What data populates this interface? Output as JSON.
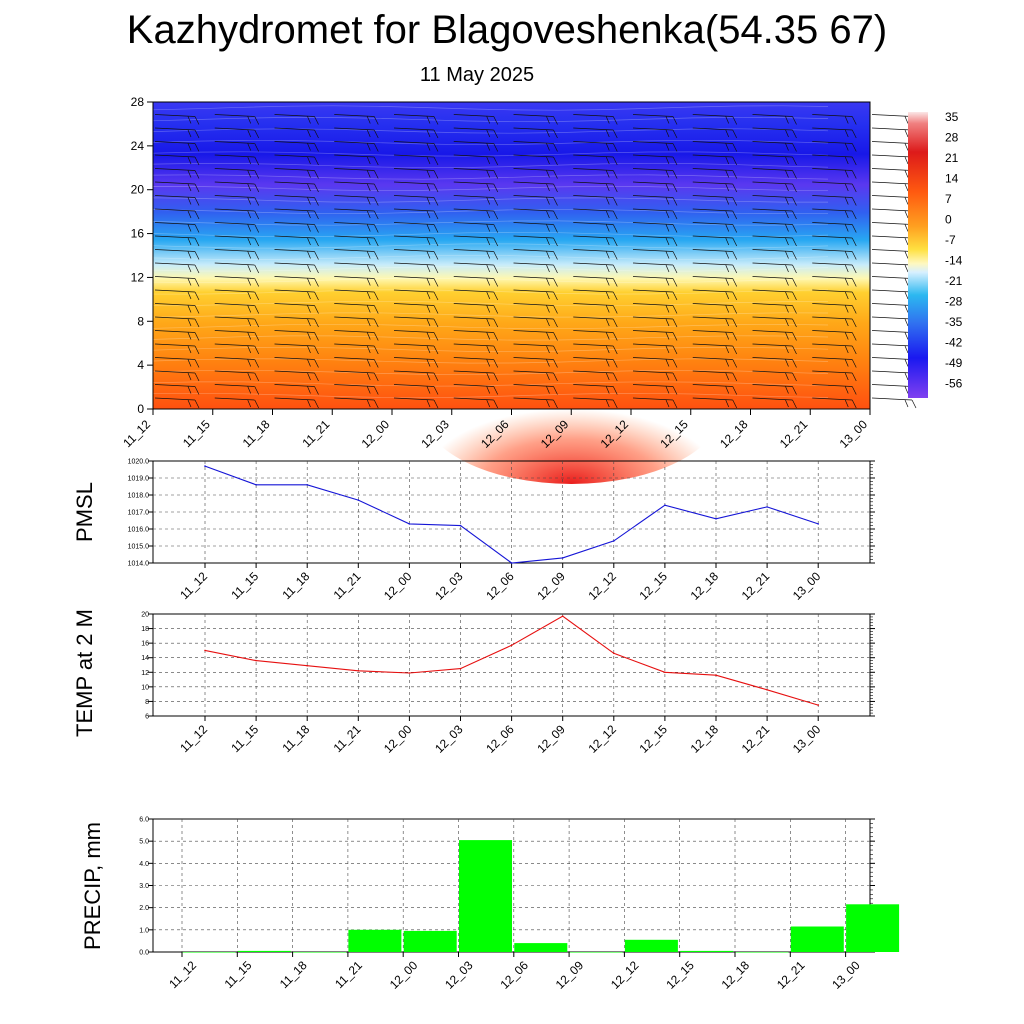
{
  "header": {
    "title": "Kazhydromet for Blagoveshenka(54.35 67)",
    "subtitle": "11 May 2025"
  },
  "colors": {
    "pmsl_line": "#1515d6",
    "temp_line": "#e61010",
    "precip_bar": "#00ff00",
    "grid": "#444444"
  },
  "chart_data": [
    {
      "type": "heatmap",
      "panel": "vertical-profile",
      "title": "",
      "x": [
        "11_12",
        "11_15",
        "11_18",
        "11_21",
        "12_00",
        "12_03",
        "12_06",
        "12_09",
        "12_12",
        "12_15",
        "12_18",
        "12_21",
        "13_00"
      ],
      "y_ticks": [
        0,
        4,
        8,
        12,
        16,
        20,
        24,
        28
      ],
      "ylim": [
        0,
        28
      ],
      "colorbar": {
        "labels": [
          "35",
          "28",
          "21",
          "14",
          "7",
          "0",
          "-7",
          "-14",
          "-21",
          "-28",
          "-35",
          "-42",
          "-49",
          "-56"
        ],
        "range": [
          -60,
          38
        ]
      },
      "temperature_by_level": [
        {
          "level": 0,
          "values": [
            14,
            13,
            13,
            13,
            13,
            14,
            16,
            18,
            15,
            13,
            12,
            12,
            12
          ]
        },
        {
          "level": 4,
          "values": [
            10,
            9,
            9,
            9,
            9,
            10,
            11,
            12,
            10,
            9,
            8,
            8,
            8
          ]
        },
        {
          "level": 8,
          "values": [
            5,
            5,
            5,
            5,
            5,
            6,
            6,
            7,
            5,
            5,
            4,
            4,
            4
          ]
        },
        {
          "level": 12,
          "values": [
            -7,
            -7,
            -7,
            -7,
            -7,
            -7,
            -7,
            -7,
            -7,
            -7,
            -7,
            -7,
            -7
          ]
        },
        {
          "level": 14,
          "values": [
            -20,
            -20,
            -20,
            -20,
            -20,
            -20,
            -20,
            -20,
            -20,
            -20,
            -20,
            -20,
            -20
          ]
        },
        {
          "level": 16,
          "values": [
            -35,
            -35,
            -35,
            -35,
            -35,
            -35,
            -35,
            -35,
            -35,
            -35,
            -35,
            -35,
            -35
          ]
        },
        {
          "level": 18,
          "values": [
            -48,
            -48,
            -48,
            -48,
            -48,
            -48,
            -48,
            -48,
            -48,
            -48,
            -48,
            -48,
            -48
          ]
        },
        {
          "level": 20,
          "values": [
            -52,
            -52,
            -52,
            -52,
            -52,
            -52,
            -52,
            -52,
            -52,
            -52,
            -52,
            -52,
            -52
          ]
        },
        {
          "level": 24,
          "values": [
            -58,
            -58,
            -58,
            -58,
            -58,
            -58,
            -58,
            -58,
            -58,
            -58,
            -58,
            -58,
            -58
          ]
        },
        {
          "level": 28,
          "values": [
            -53,
            -53,
            -53,
            -53,
            -53,
            -53,
            -53,
            -53,
            -53,
            -53,
            -53,
            -53,
            -53
          ]
        }
      ]
    },
    {
      "type": "line",
      "panel": "pmsl",
      "ylabel": "PMSL",
      "x": [
        "11_12",
        "11_15",
        "11_18",
        "11_21",
        "12_00",
        "12_03",
        "12_06",
        "12_09",
        "12_12",
        "12_15",
        "12_18",
        "12_21",
        "13_00"
      ],
      "values": [
        1019.7,
        1018.6,
        1018.6,
        1017.7,
        1016.3,
        1016.2,
        1014.0,
        1014.3,
        1015.3,
        1017.4,
        1016.6,
        1017.3,
        1016.3
      ],
      "ylim": [
        1014.0,
        1020.0
      ],
      "y_ticks": [
        "1014.0",
        "1015.0",
        "1016.0",
        "1017.0",
        "1018.0",
        "1019.0",
        "1020.0"
      ],
      "grid": true
    },
    {
      "type": "line",
      "panel": "temp-2m",
      "ylabel": "TEMP at 2 M",
      "x": [
        "11_12",
        "11_15",
        "11_18",
        "11_21",
        "12_00",
        "12_03",
        "12_06",
        "12_09",
        "12_12",
        "12_15",
        "12_18",
        "12_21",
        "13_00"
      ],
      "values": [
        15.0,
        13.6,
        12.9,
        12.2,
        11.9,
        12.5,
        15.7,
        19.7,
        14.6,
        12.0,
        11.6,
        9.6,
        7.5
      ],
      "ylim": [
        6,
        20
      ],
      "y_ticks": [
        "6",
        "8",
        "10",
        "12",
        "14",
        "16",
        "18",
        "20"
      ],
      "grid": true
    },
    {
      "type": "bar",
      "panel": "precip",
      "ylabel": "PRECIP, mm",
      "categories": [
        "11_12",
        "11_15",
        "11_18",
        "11_21",
        "12_00",
        "12_03",
        "12_06",
        "12_09",
        "12_12",
        "12_15",
        "12_18",
        "12_21",
        "13_00"
      ],
      "values": [
        0.0,
        0.05,
        0.0,
        1.0,
        0.95,
        5.05,
        0.4,
        0.0,
        0.55,
        0.05,
        0.0,
        1.15,
        2.15
      ],
      "ylim": [
        0,
        6.0
      ],
      "y_ticks": [
        "0.0",
        "1.0",
        "2.0",
        "3.0",
        "4.0",
        "5.0",
        "6.0"
      ],
      "grid": true
    }
  ]
}
